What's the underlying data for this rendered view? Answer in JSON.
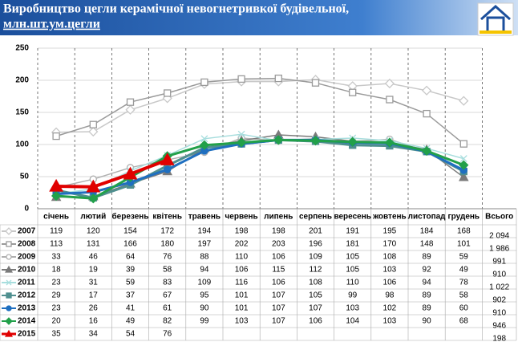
{
  "chart_data": {
    "type": "line",
    "title": [
      "Виробництво цегли керамічної невогнетривкої будівельної,",
      "млн.шт.ум.цегли"
    ],
    "categories": [
      "січень",
      "лютий",
      "березень",
      "квітень",
      "травень",
      "червень",
      "липень",
      "серпень",
      "вересень",
      "жовтень",
      "листопад",
      "грудень"
    ],
    "total_label": "Всього",
    "ylim": [
      0,
      250
    ],
    "yticks": [
      0,
      50,
      100,
      150,
      200,
      250
    ],
    "grid": true,
    "series": [
      {
        "name": "2007",
        "color": "#c8c8c8",
        "marker": "diamond",
        "values": [
          119,
          120,
          154,
          172,
          194,
          198,
          198,
          201,
          191,
          195,
          184,
          168
        ],
        "total": "2 094"
      },
      {
        "name": "2008",
        "color": "#9a9a9a",
        "marker": "square",
        "values": [
          113,
          131,
          166,
          180,
          197,
          202,
          203,
          196,
          181,
          170,
          148,
          101
        ],
        "total": "1 986"
      },
      {
        "name": "2009",
        "color": "#b0b0b0",
        "marker": "circle",
        "values": [
          33,
          46,
          64,
          76,
          88,
          110,
          106,
          109,
          105,
          108,
          89,
          59
        ],
        "total": "991"
      },
      {
        "name": "2010",
        "color": "#7a7a7a",
        "marker": "triangle",
        "values": [
          18,
          19,
          39,
          58,
          94,
          106,
          115,
          112,
          105,
          103,
          92,
          49
        ],
        "total": "910"
      },
      {
        "name": "2011",
        "color": "#a8dede",
        "marker": "cross",
        "values": [
          23,
          31,
          59,
          83,
          109,
          116,
          106,
          108,
          110,
          106,
          94,
          78
        ],
        "total": "1 022"
      },
      {
        "name": "2012",
        "color": "#4f8f8f",
        "marker": "square",
        "values": [
          29,
          17,
          37,
          67,
          95,
          101,
          107,
          105,
          99,
          98,
          89,
          58
        ],
        "total": "902"
      },
      {
        "name": "2013",
        "color": "#1f6fc0",
        "marker": "circle",
        "values": [
          23,
          26,
          41,
          61,
          90,
          101,
          107,
          107,
          103,
          102,
          89,
          60
        ],
        "total": "910"
      },
      {
        "name": "2014",
        "color": "#22a04a",
        "marker": "diamond",
        "values": [
          20,
          16,
          49,
          82,
          99,
          103,
          107,
          106,
          104,
          103,
          90,
          68
        ],
        "total": "946"
      },
      {
        "name": "2015",
        "color": "#e00000",
        "marker": "triangle",
        "values": [
          35,
          34,
          54,
          76,
          null,
          null,
          null,
          null,
          null,
          null,
          null,
          null
        ],
        "total": "198"
      }
    ]
  }
}
